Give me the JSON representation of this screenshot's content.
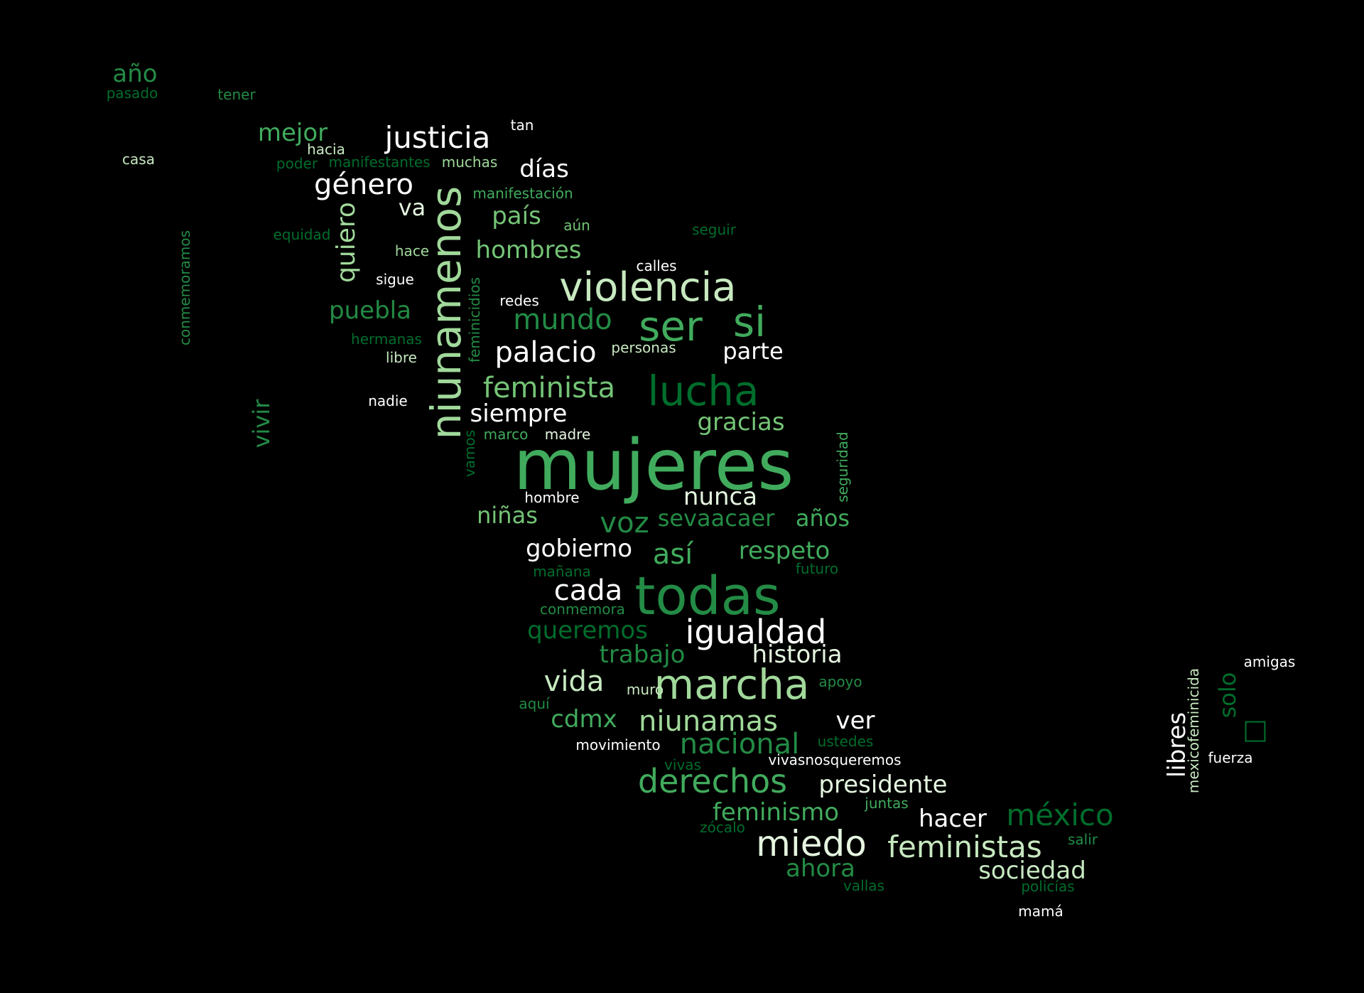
{
  "palette": {
    "background": "#000000",
    "white": "#ffffff",
    "pale": "#e5f5e0",
    "light": "#c7e9c0",
    "mint": "#a1d99b",
    "mid": "#74c476",
    "green": "#41ab5d",
    "deep": "#238b45",
    "dark": "#006d2c"
  },
  "words": [
    {
      "text": "mujeres",
      "tone": "green"
    },
    {
      "text": "niunamenos",
      "tone": "mint"
    },
    {
      "text": "todas",
      "tone": "deep"
    },
    {
      "text": "violencia",
      "tone": "light"
    },
    {
      "text": "lucha",
      "tone": "dark"
    },
    {
      "text": "ser",
      "tone": "green"
    },
    {
      "text": "si",
      "tone": "green"
    },
    {
      "text": "marcha",
      "tone": "mint"
    },
    {
      "text": "igualdad",
      "tone": "white"
    },
    {
      "text": "miedo",
      "tone": "pale"
    },
    {
      "text": "feministas",
      "tone": "light"
    },
    {
      "text": "derechos",
      "tone": "green"
    },
    {
      "text": "justicia",
      "tone": "white"
    },
    {
      "text": "género",
      "tone": "white"
    },
    {
      "text": "niunamas",
      "tone": "mint"
    },
    {
      "text": "nacional",
      "tone": "deep"
    },
    {
      "text": "palacio",
      "tone": "white"
    },
    {
      "text": "feminista",
      "tone": "mid"
    },
    {
      "text": "mundo",
      "tone": "deep"
    },
    {
      "text": "méxico",
      "tone": "dark"
    },
    {
      "text": "voz",
      "tone": "deep"
    },
    {
      "text": "siempre",
      "tone": "white"
    },
    {
      "text": "hombres",
      "tone": "mid"
    },
    {
      "text": "vida",
      "tone": "light"
    },
    {
      "text": "quiero",
      "tone": "mint"
    },
    {
      "text": "libres",
      "tone": "white"
    },
    {
      "text": "respeto",
      "tone": "green"
    },
    {
      "text": "así",
      "tone": "green"
    },
    {
      "text": "gobierno",
      "tone": "white"
    },
    {
      "text": "cada",
      "tone": "white"
    },
    {
      "text": "nunca",
      "tone": "pale"
    },
    {
      "text": "gracias",
      "tone": "mid"
    },
    {
      "text": "historia",
      "tone": "pale"
    },
    {
      "text": "queremos",
      "tone": "dark"
    },
    {
      "text": "trabajo",
      "tone": "deep"
    },
    {
      "text": "feminismo",
      "tone": "green"
    },
    {
      "text": "hacer",
      "tone": "white"
    },
    {
      "text": "presidente",
      "tone": "pale"
    },
    {
      "text": "sociedad",
      "tone": "light"
    },
    {
      "text": "ahora",
      "tone": "deep"
    },
    {
      "text": "cdmx",
      "tone": "green"
    },
    {
      "text": "ver",
      "tone": "white"
    },
    {
      "text": "parte",
      "tone": "white"
    },
    {
      "text": "días",
      "tone": "white"
    },
    {
      "text": "país",
      "tone": "mid"
    },
    {
      "text": "puebla",
      "tone": "deep"
    },
    {
      "text": "mejor",
      "tone": "green"
    },
    {
      "text": "año",
      "tone": "deep"
    },
    {
      "text": "sevaacaer",
      "tone": "deep"
    },
    {
      "text": "niñas",
      "tone": "mid"
    },
    {
      "text": "años",
      "tone": "green"
    },
    {
      "text": "va",
      "tone": "pale"
    },
    {
      "text": "vivir",
      "tone": "deep"
    },
    {
      "text": "solo",
      "tone": "dark"
    },
    {
      "text": "calles",
      "tone": "white"
    },
    {
      "text": "personas",
      "tone": "light"
    },
    {
      "text": "hombre",
      "tone": "white"
    },
    {
      "text": "madre",
      "tone": "pale"
    },
    {
      "text": "marco",
      "tone": "green"
    },
    {
      "text": "tan",
      "tone": "white"
    },
    {
      "text": "hacia",
      "tone": "light"
    },
    {
      "text": "muchas",
      "tone": "mint"
    },
    {
      "text": "manifestación",
      "tone": "green"
    },
    {
      "text": "manifestantes",
      "tone": "dark"
    },
    {
      "text": "poder",
      "tone": "dark"
    },
    {
      "text": "aún",
      "tone": "mid"
    },
    {
      "text": "seguir",
      "tone": "dark"
    },
    {
      "text": "hace",
      "tone": "mint"
    },
    {
      "text": "sigue",
      "tone": "white"
    },
    {
      "text": "redes",
      "tone": "white"
    },
    {
      "text": "equidad",
      "tone": "dark"
    },
    {
      "text": "hermanas",
      "tone": "dark"
    },
    {
      "text": "libre",
      "tone": "light"
    },
    {
      "text": "nadie",
      "tone": "white"
    },
    {
      "text": "feminicidios",
      "tone": "deep"
    },
    {
      "text": "vamos",
      "tone": "dark"
    },
    {
      "text": "seguridad",
      "tone": "green"
    },
    {
      "text": "mañana",
      "tone": "dark"
    },
    {
      "text": "futuro",
      "tone": "dark"
    },
    {
      "text": "conmemora",
      "tone": "deep"
    },
    {
      "text": "muro",
      "tone": "light"
    },
    {
      "text": "apoyo",
      "tone": "deep"
    },
    {
      "text": "aquí",
      "tone": "deep"
    },
    {
      "text": "movimiento",
      "tone": "white"
    },
    {
      "text": "ustedes",
      "tone": "dark"
    },
    {
      "text": "vivas",
      "tone": "dark"
    },
    {
      "text": "vivasnosqueremos",
      "tone": "white"
    },
    {
      "text": "juntas",
      "tone": "green"
    },
    {
      "text": "zócalo",
      "tone": "dark"
    },
    {
      "text": "salir",
      "tone": "deep"
    },
    {
      "text": "vallas",
      "tone": "dark"
    },
    {
      "text": "policías",
      "tone": "dark"
    },
    {
      "text": "mamá",
      "tone": "white"
    },
    {
      "text": "fuerza",
      "tone": "white"
    },
    {
      "text": "amigas",
      "tone": "white"
    },
    {
      "text": "mexicofeminicida",
      "tone": "light"
    },
    {
      "text": "pasado",
      "tone": "dark"
    },
    {
      "text": "tener",
      "tone": "deep"
    },
    {
      "text": "casa",
      "tone": "light"
    },
    {
      "text": "conmemoramos",
      "tone": "deep"
    },
    {
      "text": "□",
      "tone": "dark"
    }
  ]
}
